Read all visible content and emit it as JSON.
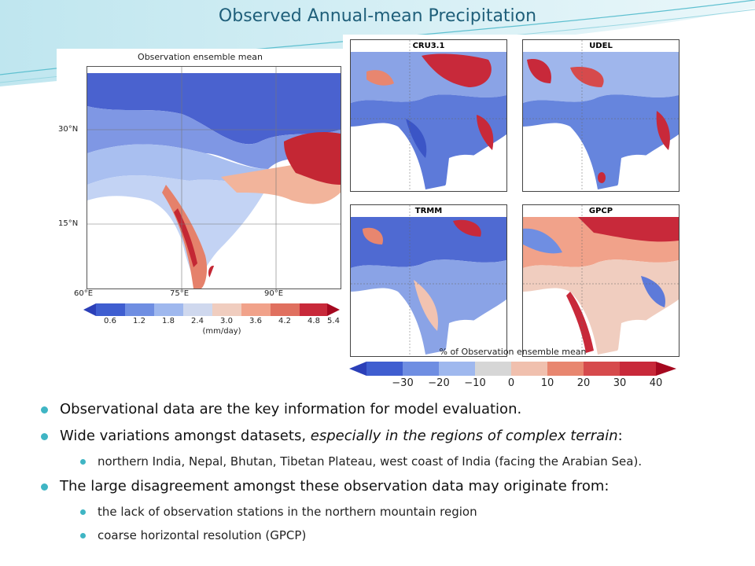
{
  "slide": {
    "title": "Observed Annual-mean Precipitation",
    "left_panel": {
      "label": "Observation ensemble mean",
      "lat_labels": [
        "30°N",
        "15°N"
      ],
      "lon_labels": [
        "60°E",
        "75°E",
        "90°E"
      ],
      "colorbar_ticks": [
        "0.6",
        "1.2",
        "1.8",
        "2.4",
        "3.0",
        "3.6",
        "4.2",
        "4.8",
        "5.4"
      ],
      "colorbar_unit": "(mm/day)"
    },
    "right_panel": {
      "maps": [
        "CRU3.1",
        "UDEL",
        "TRMM",
        "GPCP"
      ],
      "label": "% of Observation ensemble mean",
      "colorbar_ticks": [
        "−30",
        "−20",
        "−10",
        "0",
        "10",
        "20",
        "30",
        "40"
      ]
    },
    "bullets": [
      {
        "text": "Observational data are the key information for model evaluation."
      },
      {
        "text_before": "Wide variations amongst datasets, ",
        "text_em": "especially in the regions of complex terrain",
        "text_after": ":"
      },
      {
        "text": "northern India, Nepal, Bhutan, Tibetan Plateau, west coast of India (facing the Arabian Sea)."
      },
      {
        "text": "The large disagreement amongst these observation data may originate from:"
      },
      {
        "text": "the lack of observation stations in the northern mountain region"
      },
      {
        "text": "coarse horizontal resolution (GPCP)"
      }
    ],
    "colors": {
      "title": "#1f5f7a",
      "bullet": "#3fb5c4",
      "dry": "#3a55c8",
      "wet": "#c0102a"
    }
  }
}
